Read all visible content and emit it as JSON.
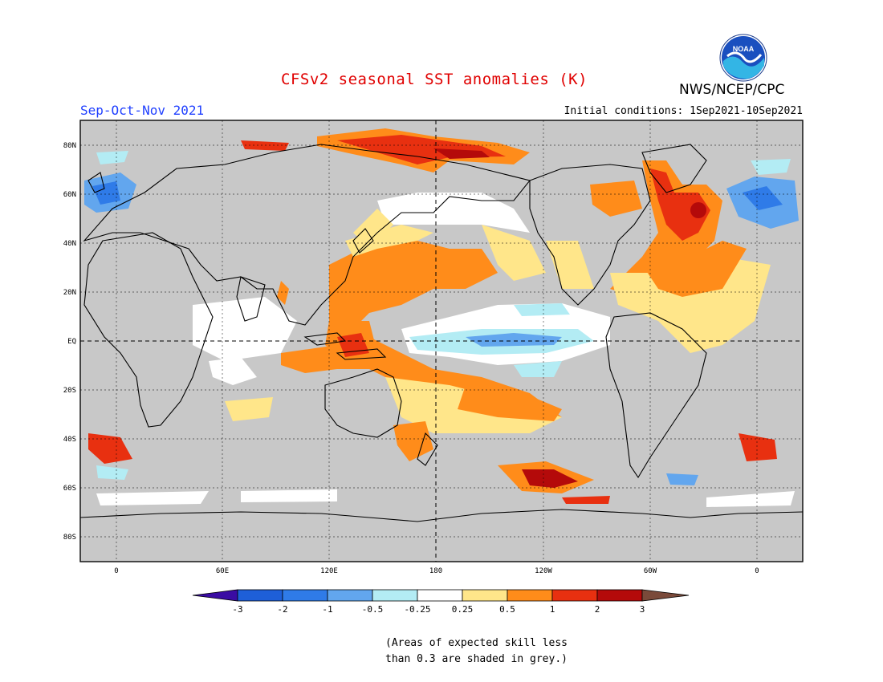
{
  "header": {
    "title": "CFSv2 seasonal SST anomalies (K)",
    "season": "Sep-Oct-Nov 2021",
    "initial_conditions": "Initial conditions: 1Sep2021-10Sep2021",
    "agency": "NWS/NCEP/CPC",
    "logo_text": "NOAA"
  },
  "map": {
    "lat_labels": [
      "80N",
      "60N",
      "40N",
      "20N",
      "EQ",
      "20S",
      "40S",
      "60S",
      "80S"
    ],
    "lon_labels": [
      "0",
      "60E",
      "120E",
      "180",
      "120W",
      "60W",
      "0"
    ],
    "background_color": "#c8c8c8",
    "land_outline_color": "#000000"
  },
  "colorbar": {
    "ticks": [
      "-3",
      "-2",
      "-1",
      "-0.5",
      "-0.25",
      "0.25",
      "0.5",
      "1",
      "2",
      "3"
    ],
    "colors": [
      "#3a0ca3",
      "#1e5fd8",
      "#2f7be8",
      "#62a6ee",
      "#b3ecf4",
      "#ffffff",
      "#ffe68a",
      "#ff8c1a",
      "#e83010",
      "#b40a0a",
      "#7a4a3a"
    ]
  },
  "footnote": {
    "line1": "(Areas of expected skill less",
    "line2": "than 0.3 are shaded in grey.)"
  }
}
